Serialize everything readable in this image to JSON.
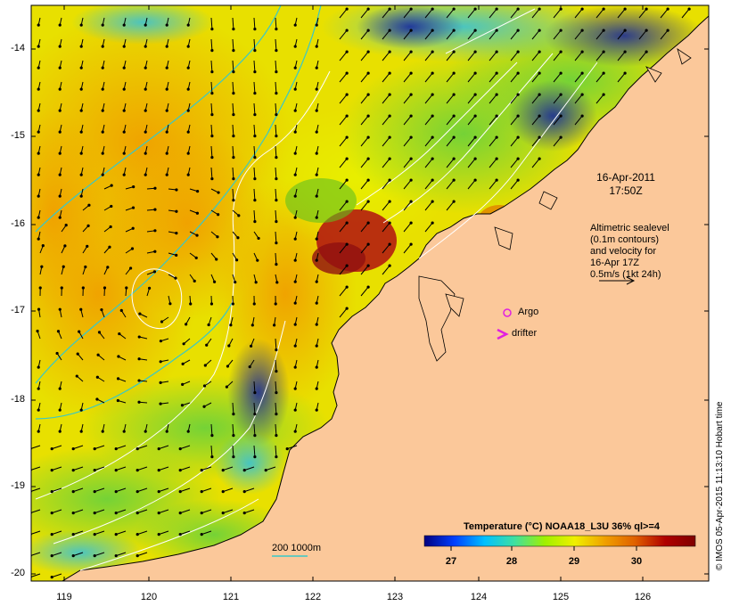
{
  "map": {
    "lat_labels": [
      "-14",
      "-15",
      "-16",
      "-17",
      "-18",
      "-19",
      "-20"
    ],
    "lon_labels": [
      "119",
      "120",
      "121",
      "122",
      "123",
      "124",
      "125",
      "126"
    ],
    "date": "16-Apr-2011",
    "time": "17:50Z",
    "altimetry_note": [
      "Altimetric sealevel",
      "(0.1m contours)",
      "and velocity for",
      "16-Apr 17Z",
      "0.5m/s (1kt 24h)"
    ],
    "argo_label": "Argo",
    "drifter_label": "drifter",
    "isobath_label": "200  1000m",
    "credit": "© IMOS 05-Apr-2015 11:13:10 Hobart time"
  },
  "colorbar": {
    "title": "Temperature (°C) NOAA18_L3U 36% ql>=4",
    "ticks": [
      "27",
      "28",
      "29",
      "30"
    ],
    "colors": [
      "#000080",
      "#0040ff",
      "#00c0ff",
      "#40e0a0",
      "#a0f000",
      "#f0f000",
      "#f0a000",
      "#e06000",
      "#b00000",
      "#800000"
    ]
  },
  "palette": {
    "land": "#fbc89a",
    "isobath": "#38c8c8",
    "contour": "#ffffff",
    "argo": "#e020e0",
    "drifter": "#e020e0"
  }
}
